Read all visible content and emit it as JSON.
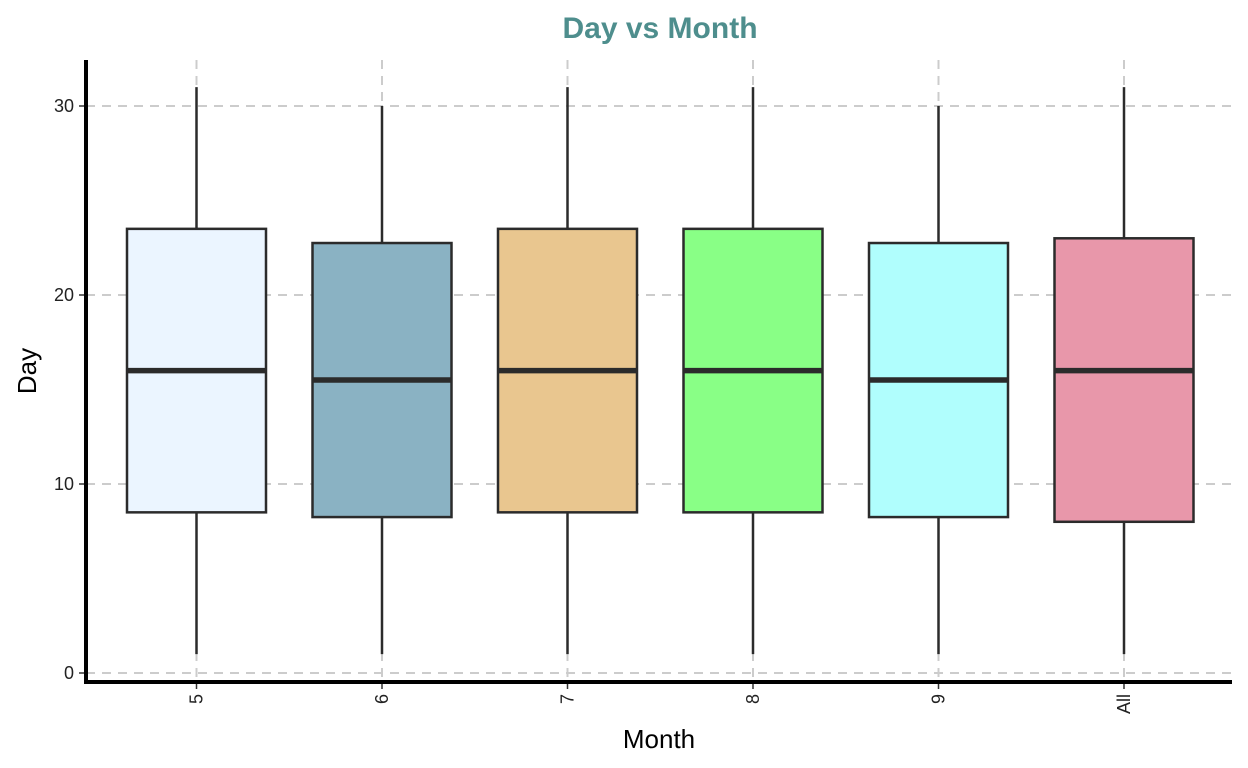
{
  "chart_data": {
    "type": "boxplot",
    "title": "Day vs Month",
    "xlabel": "Month",
    "ylabel": "Day",
    "ylim": [
      -0.5,
      32.5
    ],
    "yticks": [
      0,
      10,
      20,
      30
    ],
    "grid": true,
    "grid_style": "dashed",
    "legend": "none",
    "categories": [
      "5",
      "6",
      "7",
      "8",
      "9",
      "All"
    ],
    "boxes": [
      {
        "category": "5",
        "min": 1,
        "q1": 8.5,
        "median": 16,
        "q3": 23.5,
        "max": 31,
        "fill": "#EBF5FF"
      },
      {
        "category": "6",
        "min": 1,
        "q1": 8.25,
        "median": 15.5,
        "q3": 22.75,
        "max": 30,
        "fill": "#8AB2C3"
      },
      {
        "category": "7",
        "min": 1,
        "q1": 8.5,
        "median": 16,
        "q3": 23.5,
        "max": 31,
        "fill": "#E9C68F"
      },
      {
        "category": "8",
        "min": 1,
        "q1": 8.5,
        "median": 16,
        "q3": 23.5,
        "max": 31,
        "fill": "#89FF86"
      },
      {
        "category": "9",
        "min": 1,
        "q1": 8.25,
        "median": 15.5,
        "q3": 22.75,
        "max": 30,
        "fill": "#B0FEFD"
      },
      {
        "category": "All",
        "min": 1,
        "q1": 8,
        "median": 16,
        "q3": 23,
        "max": 31,
        "fill": "#E897AA"
      }
    ],
    "colors": {
      "title": "#4E8E8D",
      "outline": "#2b2b2b",
      "grid": "#cccccc",
      "axis": "#000000"
    }
  }
}
